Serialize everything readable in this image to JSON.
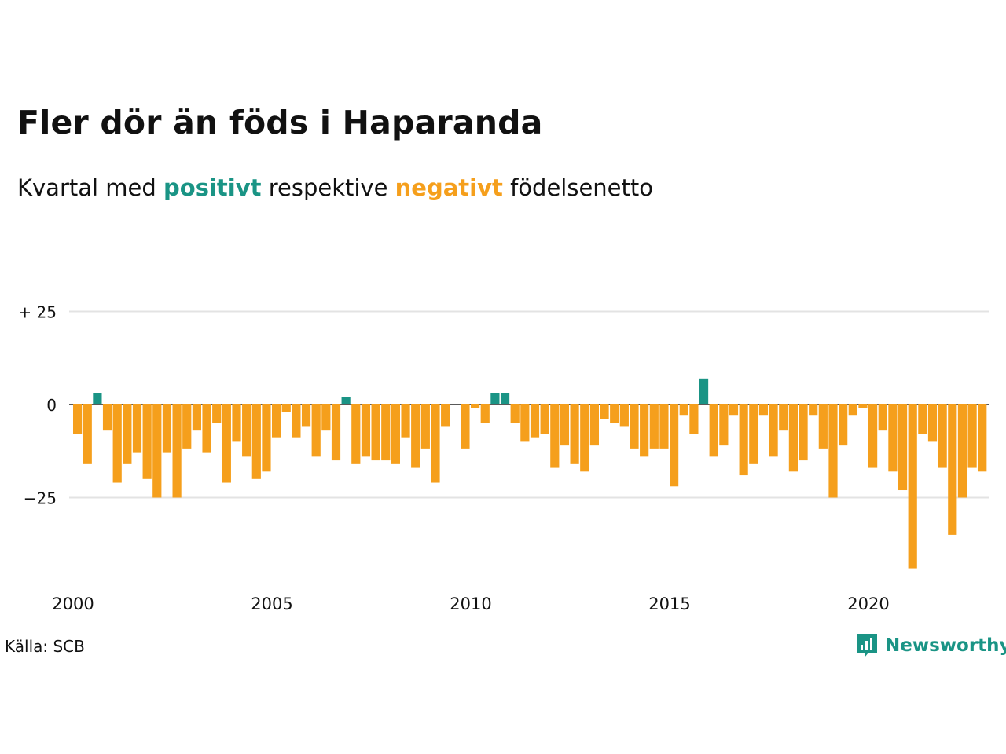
{
  "title": "Fler dör än föds i Haparanda",
  "subtitle": {
    "part1": "Kvartal med",
    "positive_word": "positivt",
    "part2": "respektive",
    "negative_word": "negativt",
    "part3": "födelsenetto"
  },
  "source": "Källa: SCB",
  "brand": {
    "name": "Newsworthy",
    "icon": "newsworthy-logo-icon"
  },
  "colors": {
    "positive": "#1a9485",
    "negative": "#f59f1c",
    "grid": "#e3e3e3",
    "text": "#111111"
  },
  "chart_data": {
    "type": "bar",
    "ylabel": "",
    "xlabel": "",
    "ylim": [
      -45,
      25
    ],
    "y_ticks": [
      {
        "value": 25,
        "label": "+ 25"
      },
      {
        "value": 0,
        "label": "0"
      },
      {
        "value": -25,
        "label": "−25"
      }
    ],
    "x_ticks": [
      "2000",
      "2005",
      "2010",
      "2015",
      "2020"
    ],
    "grid": true,
    "start": "2000 Q1",
    "frequency": "quarterly",
    "values": [
      -8,
      -16,
      3,
      -7,
      -21,
      -16,
      -13,
      -20,
      -25,
      -13,
      -25,
      -12,
      -7,
      -13,
      -5,
      -21,
      -10,
      -14,
      -20,
      -18,
      -9,
      -2,
      -9,
      -6,
      -14,
      -7,
      -15,
      2,
      -16,
      -14,
      -15,
      -15,
      -16,
      -9,
      -17,
      -12,
      -21,
      -6,
      0,
      -12,
      -1,
      -5,
      3,
      3,
      -5,
      -10,
      -9,
      -8,
      -17,
      -11,
      -16,
      -18,
      -11,
      -4,
      -5,
      -6,
      -12,
      -14,
      -12,
      -12,
      -22,
      -3,
      -8,
      7,
      -14,
      -11,
      -3,
      -19,
      -16,
      -3,
      -14,
      -7,
      -18,
      -15,
      -3,
      -12,
      -25,
      -11,
      -3,
      -1,
      -17,
      -7,
      -18,
      -23,
      -44,
      -8,
      -10,
      -17,
      -35,
      -25,
      -17,
      -18
    ]
  }
}
